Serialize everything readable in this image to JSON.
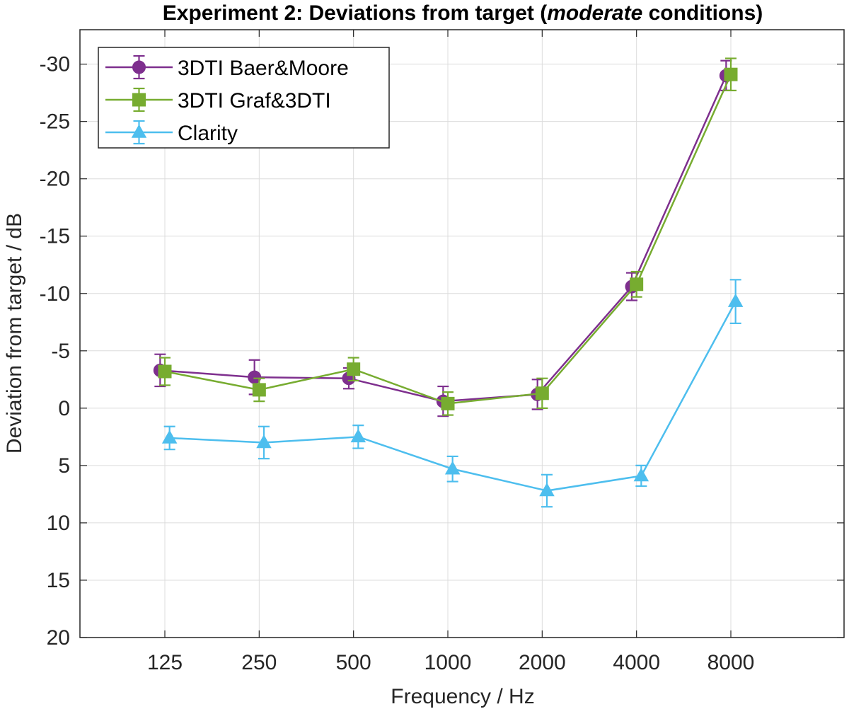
{
  "chart_data": {
    "type": "line",
    "title_prefix": "Experiment 2: Deviations from target (",
    "title_italic": "moderate",
    "title_suffix": " conditions)",
    "xlabel": "Frequency / Hz",
    "ylabel": "Deviation from target / dB",
    "categories": [
      "125",
      "250",
      "500",
      "1000",
      "2000",
      "4000",
      "8000"
    ],
    "y_reversed": true,
    "ylim": [
      -33,
      20
    ],
    "yticks": [
      -30,
      -25,
      -20,
      -15,
      -10,
      -5,
      0,
      5,
      10,
      15,
      20
    ],
    "ytick_labels": [
      "-30",
      "-25",
      "-20",
      "-15",
      "-10",
      "-5",
      "0",
      "5",
      "10",
      "15",
      "20"
    ],
    "grid": true,
    "legend_position": "top-left",
    "series": [
      {
        "name": "3DTI Baer&Moore",
        "color": "#7e2f8e",
        "marker": "circle",
        "x_offset": -0.05,
        "values": [
          -3.3,
          -2.7,
          -2.6,
          -0.6,
          -1.2,
          -10.6,
          -29.0
        ],
        "err": [
          1.4,
          1.5,
          0.9,
          1.3,
          1.3,
          1.2,
          1.3
        ]
      },
      {
        "name": "3DTI Graf&3DTI",
        "color": "#77ac30",
        "marker": "square",
        "x_offset": 0.0,
        "values": [
          -3.2,
          -1.6,
          -3.4,
          -0.4,
          -1.3,
          -10.8,
          -29.1
        ],
        "err": [
          1.2,
          1.0,
          1.0,
          1.0,
          1.3,
          1.1,
          1.4
        ]
      },
      {
        "name": "Clarity",
        "color": "#4dbeee",
        "marker": "triangle",
        "x_offset": 0.05,
        "values": [
          2.6,
          3.0,
          2.5,
          5.3,
          7.2,
          5.9,
          -9.3
        ],
        "err": [
          1.0,
          1.4,
          1.0,
          1.1,
          1.4,
          0.9,
          1.9
        ]
      }
    ]
  }
}
